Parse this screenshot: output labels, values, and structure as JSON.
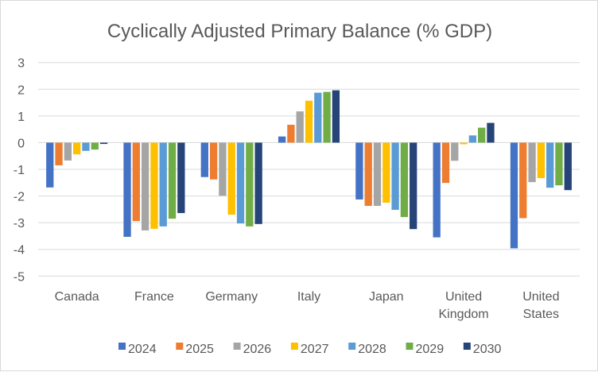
{
  "chart_data": {
    "type": "bar",
    "title": "Cyclically Adjusted Primary Balance (% GDP)",
    "xlabel": "",
    "ylabel": "",
    "ylim": [
      -5,
      3
    ],
    "yticks": [
      3,
      2,
      1,
      0,
      -1,
      -2,
      -3,
      -4,
      -5
    ],
    "grid": true,
    "legend_position": "bottom",
    "categories": [
      "Canada",
      "France",
      "Germany",
      "Italy",
      "Japan",
      "United Kingdom",
      "United States"
    ],
    "category_lines": [
      [
        "Canada"
      ],
      [
        "France"
      ],
      [
        "Germany"
      ],
      [
        "Italy"
      ],
      [
        "Japan"
      ],
      [
        "United",
        "Kingdom"
      ],
      [
        "United",
        "States"
      ]
    ],
    "series": [
      {
        "name": "2024",
        "color": "#4472C4",
        "values": [
          -1.68,
          -3.53,
          -1.29,
          0.23,
          -2.13,
          -3.55,
          -3.96
        ]
      },
      {
        "name": "2025",
        "color": "#ED7D31",
        "values": [
          -0.85,
          -2.94,
          -1.38,
          0.67,
          -2.37,
          -1.51,
          -2.83
        ]
      },
      {
        "name": "2026",
        "color": "#A5A5A5",
        "values": [
          -0.67,
          -3.29,
          -1.99,
          1.17,
          -2.37,
          -0.68,
          -1.48
        ]
      },
      {
        "name": "2027",
        "color": "#FFC000",
        "values": [
          -0.44,
          -3.23,
          -2.7,
          1.57,
          -2.25,
          -0.06,
          -1.33
        ]
      },
      {
        "name": "2028",
        "color": "#5B9BD5",
        "values": [
          -0.31,
          -3.14,
          -3.03,
          1.87,
          -2.52,
          0.27,
          -1.69
        ]
      },
      {
        "name": "2029",
        "color": "#70AD47",
        "values": [
          -0.26,
          -2.85,
          -3.14,
          1.9,
          -2.79,
          0.56,
          -1.6
        ]
      },
      {
        "name": "2030",
        "color": "#264478",
        "values": [
          -0.05,
          -2.64,
          -3.05,
          1.96,
          -3.24,
          0.74,
          -1.78
        ]
      }
    ]
  }
}
